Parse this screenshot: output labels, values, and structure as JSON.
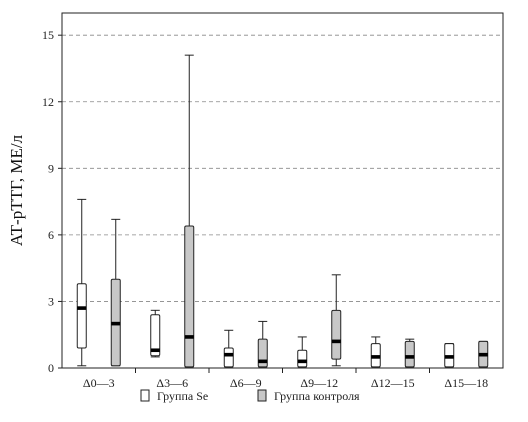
{
  "chart_data": {
    "type": "box",
    "ylabel": "АТ-рТТГ, МЕ/л",
    "ylim": [
      0,
      16
    ],
    "yticks": [
      0,
      3,
      6,
      9,
      12,
      15
    ],
    "grid": "y-dashed",
    "categories": [
      "Δ0—3",
      "Δ3—6",
      "Δ6—9",
      "Δ9—12",
      "Δ12—15",
      "Δ15—18"
    ],
    "series": [
      {
        "name": "Группа Se",
        "color": "#ffffff",
        "boxes": [
          {
            "min": 0.1,
            "q1": 0.9,
            "median": 2.7,
            "q3": 3.8,
            "max": 7.6
          },
          {
            "min": 0.5,
            "q1": 0.55,
            "median": 0.8,
            "q3": 2.4,
            "max": 2.6
          },
          {
            "min": 0.05,
            "q1": 0.05,
            "median": 0.6,
            "q3": 0.9,
            "max": 1.7
          },
          {
            "min": 0.05,
            "q1": 0.05,
            "median": 0.3,
            "q3": 0.8,
            "max": 1.4
          },
          {
            "min": 0.05,
            "q1": 0.05,
            "median": 0.5,
            "q3": 1.1,
            "max": 1.4
          },
          {
            "min": 0.05,
            "q1": 0.05,
            "median": 0.5,
            "q3": 1.1,
            "max": 1.1
          }
        ]
      },
      {
        "name": "Группа контроля",
        "color": "#c8c8c8",
        "boxes": [
          {
            "min": 0.1,
            "q1": 0.1,
            "median": 2.0,
            "q3": 4.0,
            "max": 6.7
          },
          {
            "min": 0.05,
            "q1": 0.05,
            "median": 1.4,
            "q3": 6.4,
            "max": 14.1
          },
          {
            "min": 0.05,
            "q1": 0.05,
            "median": 0.3,
            "q3": 1.3,
            "max": 2.1
          },
          {
            "min": 0.1,
            "q1": 0.4,
            "median": 1.2,
            "q3": 2.6,
            "max": 4.2
          },
          {
            "min": 0.05,
            "q1": 0.05,
            "median": 0.5,
            "q3": 1.2,
            "max": 1.3
          },
          {
            "min": 0.05,
            "q1": 0.05,
            "median": 0.6,
            "q3": 1.2,
            "max": 1.2
          }
        ]
      }
    ],
    "legend": {
      "position": "bottom",
      "items": [
        "Группа Se",
        "Группа контроля"
      ]
    }
  }
}
